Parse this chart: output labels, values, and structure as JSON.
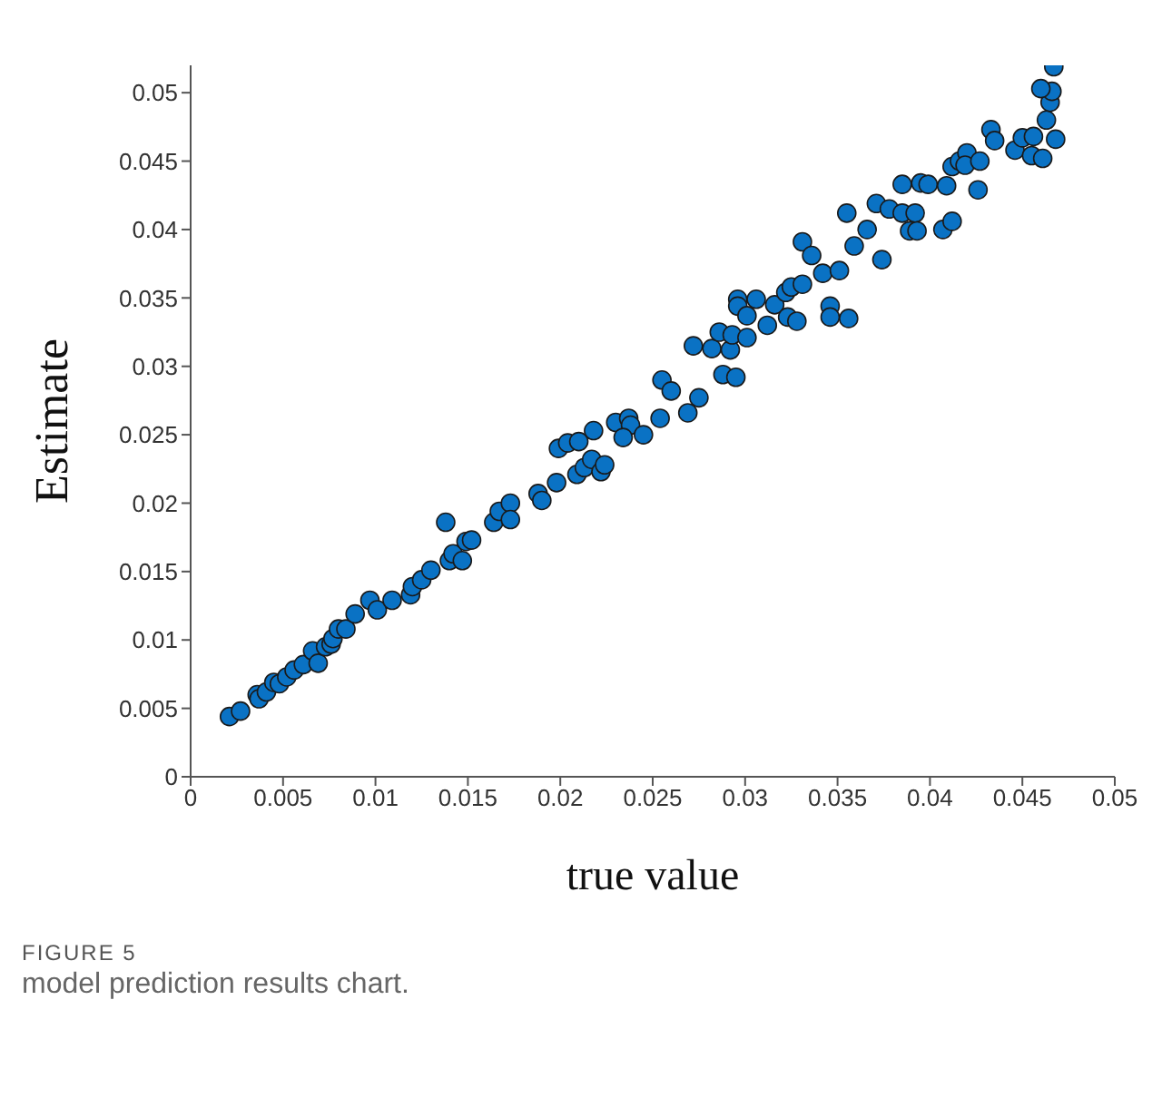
{
  "chart_data": {
    "type": "scatter",
    "xlabel": "true value",
    "ylabel": "Estimate",
    "annotations": [
      "FIGURE 5",
      "model prediction results chart."
    ],
    "xlim": [
      0,
      0.05
    ],
    "xticks": [
      0,
      0.005,
      0.01,
      0.015,
      0.02,
      0.025,
      0.03,
      0.035,
      0.04,
      0.045,
      0.05
    ],
    "ylim": [
      0,
      0.052
    ],
    "yticks": [
      0,
      0.005,
      0.01,
      0.015,
      0.02,
      0.025,
      0.03,
      0.035,
      0.04,
      0.045,
      0.05
    ],
    "grid": false,
    "legend": false,
    "marker": "circle",
    "series": [
      {
        "color": "#0a72c4",
        "x": [
          0.0021,
          0.0027,
          0.0036,
          0.0037,
          0.0041,
          0.0045,
          0.0048,
          0.0052,
          0.0056,
          0.0061,
          0.0066,
          0.0069,
          0.0073,
          0.0076,
          0.0077,
          0.008,
          0.0084,
          0.0089,
          0.0097,
          0.0101,
          0.0109,
          0.0119,
          0.012,
          0.0125,
          0.013,
          0.0138,
          0.014,
          0.0142,
          0.0147,
          0.0149,
          0.0152,
          0.0164,
          0.0167,
          0.0173,
          0.0173,
          0.0188,
          0.019,
          0.0198,
          0.0199,
          0.0204,
          0.021,
          0.0209,
          0.0213,
          0.0217,
          0.0222,
          0.0224,
          0.0218,
          0.023,
          0.0237,
          0.0238,
          0.0234,
          0.0245,
          0.0254,
          0.0269,
          0.0275,
          0.0255,
          0.026,
          0.0272,
          0.0282,
          0.0288,
          0.0295,
          0.0286,
          0.0292,
          0.0293,
          0.0301,
          0.0296,
          0.0296,
          0.0301,
          0.0306,
          0.0312,
          0.0316,
          0.0323,
          0.0328,
          0.0322,
          0.0325,
          0.0331,
          0.0331,
          0.0336,
          0.0342,
          0.0351,
          0.0346,
          0.0346,
          0.0356,
          0.0359,
          0.0355,
          0.0366,
          0.0374,
          0.0371,
          0.0378,
          0.0385,
          0.0392,
          0.0389,
          0.0393,
          0.0385,
          0.0395,
          0.0399,
          0.0409,
          0.0407,
          0.0412,
          0.0426,
          0.0412,
          0.0416,
          0.042,
          0.0419,
          0.0427,
          0.0433,
          0.0435,
          0.0446,
          0.045,
          0.0456,
          0.0455,
          0.0461,
          0.0468,
          0.0463,
          0.0465,
          0.0466,
          0.046,
          0.0467
        ],
        "values": [
          0.0044,
          0.0048,
          0.006,
          0.0057,
          0.0062,
          0.0069,
          0.0068,
          0.0073,
          0.0078,
          0.0082,
          0.0092,
          0.0083,
          0.0095,
          0.0097,
          0.0101,
          0.0108,
          0.0108,
          0.0119,
          0.0129,
          0.0122,
          0.0129,
          0.0133,
          0.0139,
          0.0144,
          0.0151,
          0.0186,
          0.0158,
          0.0163,
          0.0158,
          0.0172,
          0.0173,
          0.0186,
          0.0194,
          0.02,
          0.0188,
          0.0207,
          0.0202,
          0.0215,
          0.024,
          0.0244,
          0.0245,
          0.0221,
          0.0226,
          0.0232,
          0.0223,
          0.0228,
          0.0253,
          0.0259,
          0.0262,
          0.0257,
          0.0248,
          0.025,
          0.0262,
          0.0266,
          0.0277,
          0.029,
          0.0282,
          0.0315,
          0.0313,
          0.0294,
          0.0292,
          0.0325,
          0.0312,
          0.0323,
          0.0321,
          0.0349,
          0.0344,
          0.0337,
          0.0349,
          0.033,
          0.0345,
          0.0336,
          0.0333,
          0.0354,
          0.0358,
          0.036,
          0.0391,
          0.0381,
          0.0368,
          0.037,
          0.0344,
          0.0336,
          0.0335,
          0.0388,
          0.0412,
          0.04,
          0.0378,
          0.0419,
          0.0415,
          0.0412,
          0.0412,
          0.0399,
          0.0399,
          0.0433,
          0.0434,
          0.0433,
          0.0432,
          0.04,
          0.0406,
          0.0429,
          0.0446,
          0.045,
          0.0456,
          0.0447,
          0.045,
          0.0473,
          0.0465,
          0.0458,
          0.0467,
          0.0468,
          0.0454,
          0.0452,
          0.0466,
          0.048,
          0.0493,
          0.0501,
          0.0503,
          0.0519
        ]
      }
    ]
  }
}
